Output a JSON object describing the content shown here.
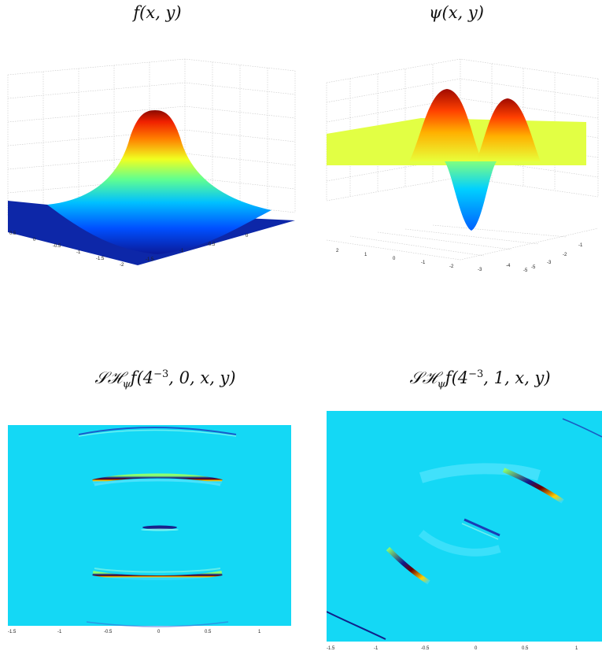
{
  "panels": {
    "top_left": {
      "title_fn": "f",
      "title_args": "(x, y)"
    },
    "top_right": {
      "title_fn": "ψ",
      "title_args": "(x, y)"
    },
    "bottom_left": {
      "title_prefix": "𝒮ℋ",
      "title_sub": "ψ",
      "title_f": "f(4",
      "title_exp": "−3",
      "title_rest": ", 0, x, y)"
    },
    "bottom_right": {
      "title_prefix": "𝒮ℋ",
      "title_sub": "ψ",
      "title_f": "f(4",
      "title_exp": "−3",
      "title_rest": ", 1, x, y)"
    }
  },
  "axes": {
    "tl_left_ticks": [
      "0.5",
      "0",
      "-0.5",
      "-1",
      "-1.5",
      "-2"
    ],
    "tl_right_ticks": [
      "-1.5",
      "-1",
      "-0.5",
      "0"
    ],
    "tr_left_ticks": [
      "2",
      "1",
      "0",
      "-1",
      "-2",
      "-3",
      "-4",
      "-5"
    ],
    "tr_right_ticks": [
      "-5",
      "-3",
      "-2",
      "-1"
    ],
    "bl_x_ticks": [
      "-1.5",
      "-1",
      "-0.5",
      "0",
      "0.5",
      "1"
    ],
    "br_x_ticks": [
      "-1.5",
      "-1",
      "-0.5",
      "0",
      "0.5",
      "1"
    ]
  },
  "colors": {
    "jet_low": "#00008f",
    "jet_mid_blue": "#00bfff",
    "jet_cyan": "#14d5f5",
    "jet_yellow": "#e6ff3c",
    "jet_red": "#ff2000",
    "jet_dark_red": "#800000",
    "background": "#ffffff"
  }
}
